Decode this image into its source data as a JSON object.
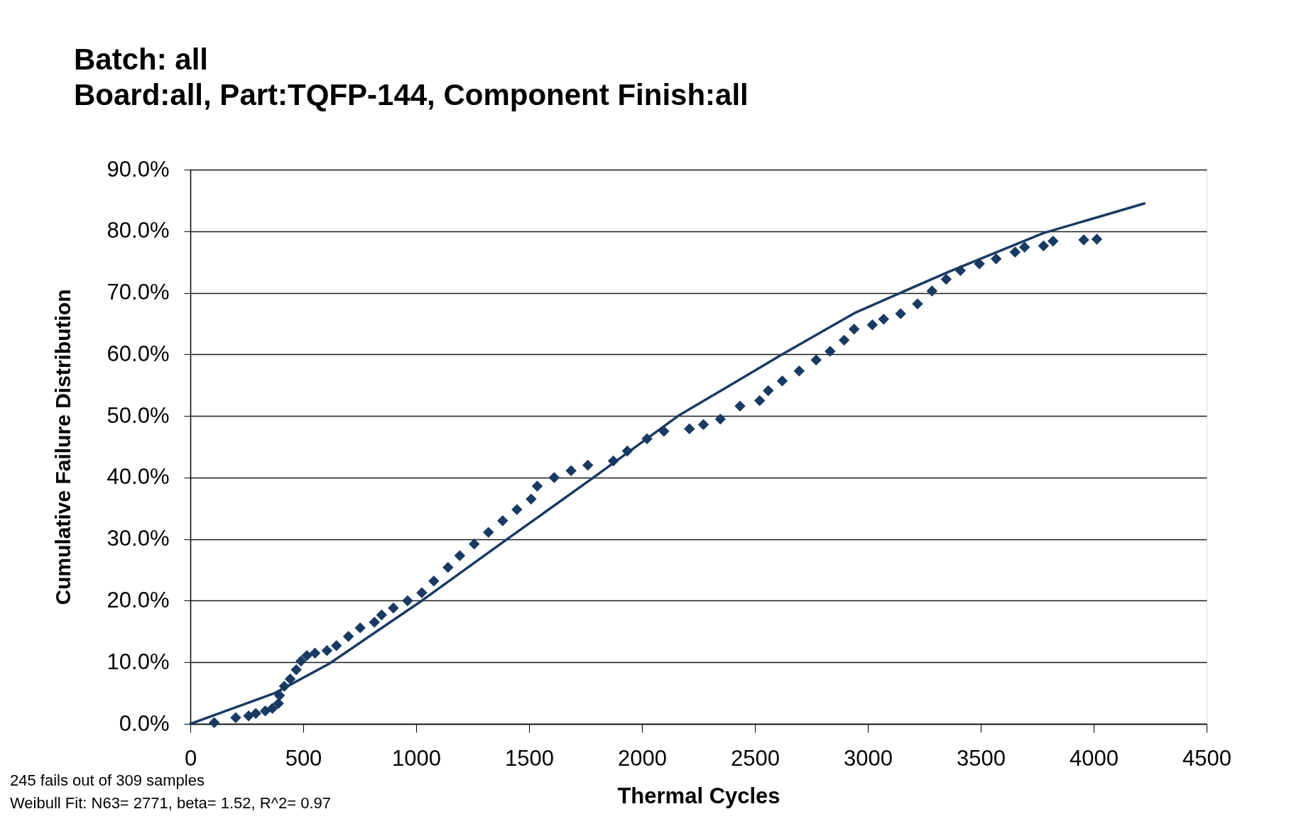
{
  "chart_data": {
    "type": "scatter",
    "title": "Batch: all",
    "subtitle": "Board:all, Part:TQFP-144, Component Finish:all",
    "xlabel": "Thermal Cycles",
    "ylabel": "Cumulative Failure Distribution",
    "annotations": [
      "245 fails out of 309 samples",
      "Weibull Fit: N63= 2771, beta= 1.52, R^2= 0.97"
    ],
    "xlim": [
      0,
      4500
    ],
    "xticks": [
      0,
      500,
      1000,
      1500,
      2000,
      2500,
      3000,
      3500,
      4000,
      4500
    ],
    "ylim": [
      0,
      90
    ],
    "yticks": [
      {
        "value": 0,
        "label": "0.0%"
      },
      {
        "value": 10,
        "label": "10.0%"
      },
      {
        "value": 20,
        "label": "20.0%"
      },
      {
        "value": 30,
        "label": "30.0%"
      },
      {
        "value": 40,
        "label": "40.0%"
      },
      {
        "value": 50,
        "label": "50.0%"
      },
      {
        "value": 60,
        "label": "60.0%"
      },
      {
        "value": 70,
        "label": "70.0%"
      },
      {
        "value": 80,
        "label": "80.0%"
      },
      {
        "value": 90,
        "label": "90.0%"
      }
    ],
    "grid": "y",
    "series": [
      {
        "color": "#183a63",
        "marker": "diamond",
        "x": [
          106,
          201,
          258,
          290,
          332,
          363,
          390,
          395,
          416,
          442,
          469,
          490,
          516,
          552,
          605,
          647,
          700,
          752,
          815,
          847,
          899,
          962,
          1025,
          1078,
          1141,
          1193,
          1257,
          1320,
          1383,
          1446,
          1509,
          1536,
          1611,
          1686,
          1760,
          1873,
          1935,
          2022,
          2097,
          2210,
          2272,
          2347,
          2434,
          2521,
          2559,
          2621,
          2696,
          2771,
          2833,
          2895,
          2939,
          3020,
          3070,
          3145,
          3220,
          3284,
          3347,
          3410,
          3494,
          3568,
          3652,
          3694,
          3778,
          3820,
          3956,
          4014
        ],
        "values": [
          0.2,
          1.0,
          1.3,
          1.7,
          2.1,
          2.5,
          3.3,
          4.6,
          6.1,
          7.3,
          8.8,
          10.2,
          11.1,
          11.5,
          11.9,
          12.7,
          14.2,
          15.6,
          16.5,
          17.7,
          18.8,
          20.0,
          21.3,
          23.2,
          25.4,
          27.3,
          29.2,
          31.1,
          33.0,
          34.8,
          36.5,
          38.6,
          40.0,
          41.1,
          42.0,
          42.7,
          44.3,
          46.3,
          47.5,
          47.9,
          48.6,
          49.5,
          51.6,
          52.5,
          54.1,
          55.7,
          57.3,
          59.1,
          60.5,
          62.3,
          64.1,
          64.8,
          65.7,
          66.6,
          68.2,
          70.3,
          72.2,
          73.6,
          74.7,
          75.5,
          76.6,
          77.4,
          77.6,
          78.4,
          78.6,
          78.7
        ]
      },
      {
        "type": "line",
        "color": "#183a63",
        "x": [
          0,
          374,
          616,
          1025,
          1403,
          1785,
          2160,
          2621,
          2946,
          3357,
          3778,
          4224
        ],
        "values": [
          0,
          5.0,
          9.8,
          20.0,
          30.0,
          40.0,
          50.0,
          60.0,
          66.8,
          73.4,
          79.7,
          84.5
        ]
      }
    ]
  }
}
